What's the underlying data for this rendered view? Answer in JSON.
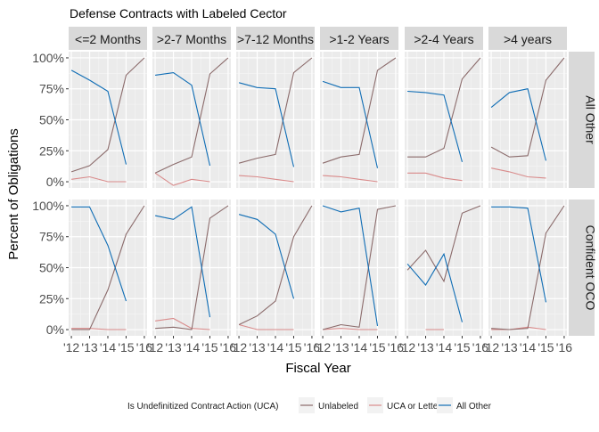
{
  "chart_data": {
    "type": "line",
    "title": "Defense Contracts with Labeled Cector",
    "xlabel": "Fiscal Year",
    "ylabel": "Percent of Obligations",
    "x_ticks": [
      "'12",
      "'13",
      "'14",
      "'15",
      "'16"
    ],
    "x_values": [
      2012,
      2013,
      2014,
      2015,
      2016
    ],
    "xlim": [
      2011.85,
      2016.15
    ],
    "y_ticks": [
      "0%",
      "25%",
      "50%",
      "75%",
      "100%"
    ],
    "y_values": [
      0,
      0.25,
      0.5,
      0.75,
      1
    ],
    "ylim": [
      -0.05,
      1.05
    ],
    "columns": [
      "<=2 Months",
      ">2-7 Months",
      ">7-12 Months",
      ">1-2 Years",
      ">2-4 Years",
      ">4 years"
    ],
    "rows": [
      "All Other",
      "Confident OCO"
    ],
    "legend": {
      "title": "Is Undefinitized Contract Action (UCA)",
      "position": "bottom",
      "entries": [
        {
          "name": "Unlabeled",
          "color": "#8b6b6b"
        },
        {
          "name": "UCA or Letter",
          "color": "#d98a8a"
        },
        {
          "name": "All Other",
          "color": "#0f6db5"
        }
      ]
    },
    "panels": [
      {
        "row": 0,
        "col": 0,
        "series": [
          {
            "name": "Unlabeled",
            "x": [
              2012,
              2013,
              2014,
              2015,
              2016
            ],
            "y": [
              0.08,
              0.13,
              0.26,
              0.86,
              1.0
            ]
          },
          {
            "name": "UCA or Letter",
            "x": [
              2012,
              2013,
              2014,
              2015
            ],
            "y": [
              0.02,
              0.04,
              0.0,
              0.0
            ]
          },
          {
            "name": "All Other",
            "x": [
              2012,
              2013,
              2014,
              2015
            ],
            "y": [
              0.9,
              0.82,
              0.73,
              0.14
            ]
          }
        ]
      },
      {
        "row": 0,
        "col": 1,
        "series": [
          {
            "name": "Unlabeled",
            "x": [
              2012,
              2013,
              2014,
              2015,
              2016
            ],
            "y": [
              0.07,
              0.14,
              0.2,
              0.87,
              1.0
            ]
          },
          {
            "name": "UCA or Letter",
            "x": [
              2012,
              2013,
              2014,
              2015
            ],
            "y": [
              0.07,
              -0.03,
              0.02,
              0.0
            ]
          },
          {
            "name": "All Other",
            "x": [
              2012,
              2013,
              2014,
              2015
            ],
            "y": [
              0.86,
              0.88,
              0.78,
              0.13
            ]
          }
        ]
      },
      {
        "row": 0,
        "col": 2,
        "series": [
          {
            "name": "Unlabeled",
            "x": [
              2012,
              2013,
              2014,
              2015,
              2016
            ],
            "y": [
              0.15,
              0.19,
              0.22,
              0.88,
              1.0
            ]
          },
          {
            "name": "UCA or Letter",
            "x": [
              2012,
              2013,
              2014,
              2015
            ],
            "y": [
              0.05,
              0.04,
              0.02,
              0.0
            ]
          },
          {
            "name": "All Other",
            "x": [
              2012,
              2013,
              2014,
              2015
            ],
            "y": [
              0.8,
              0.76,
              0.75,
              0.12
            ]
          }
        ]
      },
      {
        "row": 0,
        "col": 3,
        "series": [
          {
            "name": "Unlabeled",
            "x": [
              2012,
              2013,
              2014,
              2015,
              2016
            ],
            "y": [
              0.15,
              0.2,
              0.22,
              0.9,
              1.0
            ]
          },
          {
            "name": "UCA or Letter",
            "x": [
              2012,
              2013,
              2014,
              2015
            ],
            "y": [
              0.05,
              0.04,
              0.02,
              0.0
            ]
          },
          {
            "name": "All Other",
            "x": [
              2012,
              2013,
              2014,
              2015
            ],
            "y": [
              0.81,
              0.76,
              0.76,
              0.11
            ]
          }
        ]
      },
      {
        "row": 0,
        "col": 4,
        "series": [
          {
            "name": "Unlabeled",
            "x": [
              2012,
              2013,
              2014,
              2015,
              2016
            ],
            "y": [
              0.2,
              0.2,
              0.27,
              0.83,
              1.0
            ]
          },
          {
            "name": "UCA or Letter",
            "x": [
              2012,
              2013,
              2014,
              2015
            ],
            "y": [
              0.07,
              0.07,
              0.03,
              0.01
            ]
          },
          {
            "name": "All Other",
            "x": [
              2012,
              2013,
              2014,
              2015
            ],
            "y": [
              0.73,
              0.72,
              0.7,
              0.16
            ]
          }
        ]
      },
      {
        "row": 0,
        "col": 5,
        "series": [
          {
            "name": "Unlabeled",
            "x": [
              2012,
              2013,
              2014,
              2015,
              2016
            ],
            "y": [
              0.28,
              0.2,
              0.21,
              0.82,
              1.0
            ]
          },
          {
            "name": "UCA or Letter",
            "x": [
              2012,
              2013,
              2014,
              2015
            ],
            "y": [
              0.11,
              0.08,
              0.04,
              0.03
            ]
          },
          {
            "name": "All Other",
            "x": [
              2012,
              2013,
              2014,
              2015
            ],
            "y": [
              0.6,
              0.72,
              0.75,
              0.17
            ]
          }
        ]
      },
      {
        "row": 1,
        "col": 0,
        "series": [
          {
            "name": "Unlabeled",
            "x": [
              2012,
              2013,
              2014,
              2015,
              2016
            ],
            "y": [
              0.0,
              0.0,
              0.32,
              0.77,
              1.0
            ]
          },
          {
            "name": "UCA or Letter",
            "x": [
              2012,
              2013,
              2014,
              2015
            ],
            "y": [
              0.01,
              0.01,
              0.0,
              0.0
            ]
          },
          {
            "name": "All Other",
            "x": [
              2012,
              2013,
              2014,
              2015
            ],
            "y": [
              0.99,
              0.99,
              0.68,
              0.23
            ]
          }
        ]
      },
      {
        "row": 1,
        "col": 1,
        "series": [
          {
            "name": "Unlabeled",
            "x": [
              2012,
              2013,
              2014,
              2015,
              2016
            ],
            "y": [
              0.01,
              0.02,
              0.0,
              0.9,
              1.0
            ]
          },
          {
            "name": "UCA or Letter",
            "x": [
              2012,
              2013,
              2014,
              2015
            ],
            "y": [
              0.07,
              0.09,
              0.01,
              0.0
            ]
          },
          {
            "name": "All Other",
            "x": [
              2012,
              2013,
              2014,
              2015
            ],
            "y": [
              0.92,
              0.89,
              0.99,
              0.1
            ]
          }
        ]
      },
      {
        "row": 1,
        "col": 2,
        "series": [
          {
            "name": "Unlabeled",
            "x": [
              2012,
              2013,
              2014,
              2015,
              2016
            ],
            "y": [
              0.04,
              0.11,
              0.23,
              0.75,
              1.0
            ]
          },
          {
            "name": "UCA or Letter",
            "x": [
              2012,
              2013,
              2014,
              2015
            ],
            "y": [
              0.04,
              0.0,
              0.0,
              0.0
            ]
          },
          {
            "name": "All Other",
            "x": [
              2012,
              2013,
              2014,
              2015
            ],
            "y": [
              0.93,
              0.89,
              0.77,
              0.25
            ]
          }
        ]
      },
      {
        "row": 1,
        "col": 3,
        "series": [
          {
            "name": "Unlabeled",
            "x": [
              2012,
              2013,
              2014,
              2015,
              2016
            ],
            "y": [
              0.0,
              0.04,
              0.02,
              0.97,
              1.0
            ]
          },
          {
            "name": "UCA or Letter",
            "x": [
              2012,
              2013,
              2014,
              2015
            ],
            "y": [
              0.0,
              0.01,
              0.0,
              0.0
            ]
          },
          {
            "name": "All Other",
            "x": [
              2012,
              2013,
              2014,
              2015
            ],
            "y": [
              1.0,
              0.95,
              0.98,
              0.03
            ]
          }
        ]
      },
      {
        "row": 1,
        "col": 4,
        "series": [
          {
            "name": "Unlabeled",
            "x": [
              2012,
              2013,
              2014,
              2015,
              2016
            ],
            "y": [
              0.48,
              0.64,
              0.39,
              0.94,
              1.0
            ]
          },
          {
            "name": "UCA or Letter",
            "x": [
              2013,
              2014
            ],
            "y": [
              0.0,
              0.0
            ]
          },
          {
            "name": "All Other",
            "x": [
              2012,
              2013,
              2014,
              2015
            ],
            "y": [
              0.53,
              0.36,
              0.61,
              0.06
            ]
          }
        ]
      },
      {
        "row": 1,
        "col": 5,
        "series": [
          {
            "name": "Unlabeled",
            "x": [
              2012,
              2013,
              2014,
              2015,
              2016
            ],
            "y": [
              0.01,
              0.0,
              0.01,
              0.78,
              1.0
            ]
          },
          {
            "name": "UCA or Letter",
            "x": [
              2012,
              2013,
              2014,
              2015
            ],
            "y": [
              0.0,
              0.0,
              0.02,
              0.0
            ]
          },
          {
            "name": "All Other",
            "x": [
              2012,
              2013,
              2014,
              2015
            ],
            "y": [
              0.99,
              0.99,
              0.98,
              0.22
            ]
          }
        ]
      }
    ]
  }
}
